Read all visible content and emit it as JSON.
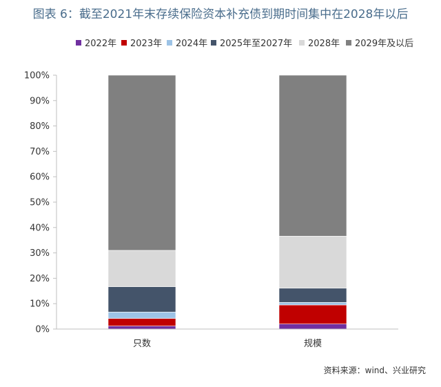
{
  "title": "图表 6：截至2021年末存续保险资本补充债到期时间集中在2028年以后",
  "source": "资料来源：wind、兴业研究",
  "chart_data": {
    "type": "bar",
    "stacked": true,
    "categories": [
      "只数",
      "规模"
    ],
    "series": [
      {
        "name": "2022年",
        "color": "#7030a0",
        "values": [
          1.2,
          2.0
        ]
      },
      {
        "name": "2023年",
        "color": "#c00000",
        "values": [
          3.0,
          7.5
        ]
      },
      {
        "name": "2024年",
        "color": "#9dc3e6",
        "values": [
          2.5,
          1.0
        ]
      },
      {
        "name": "2025年至2027年",
        "color": "#44546a",
        "values": [
          10.0,
          5.6
        ]
      },
      {
        "name": "2028年",
        "color": "#d9d9d9",
        "values": [
          14.3,
          20.5
        ]
      },
      {
        "name": "2029年及以后",
        "color": "#808080",
        "values": [
          69.0,
          63.4
        ]
      }
    ],
    "ylim": [
      0,
      100
    ],
    "yticks": [
      "0%",
      "10%",
      "20%",
      "30%",
      "40%",
      "50%",
      "60%",
      "70%",
      "80%",
      "90%",
      "100%"
    ],
    "legend_position": "top",
    "grid": false
  }
}
